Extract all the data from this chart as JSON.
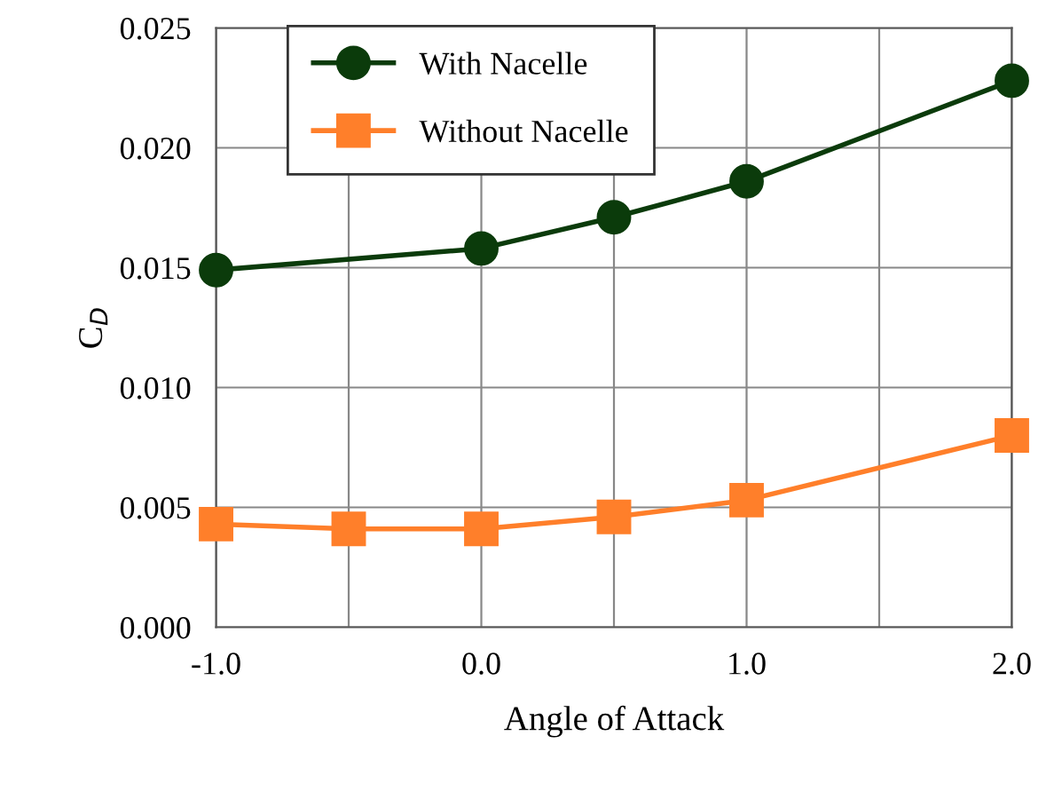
{
  "chart_data": {
    "type": "line",
    "xlabel": "Angle of Attack",
    "ylabel": "C$_{D}$",
    "xlim": [
      -1.0,
      2.0
    ],
    "xticks": [
      {
        "value": -1.0,
        "label": "-1.0"
      },
      {
        "value": -0.5,
        "label": null
      },
      {
        "value": 0.0,
        "label": "0.0"
      },
      {
        "value": 0.5,
        "label": null
      },
      {
        "value": 1.0,
        "label": "1.0"
      },
      {
        "value": 1.5,
        "label": null
      },
      {
        "value": 2.0,
        "label": "2.0"
      }
    ],
    "ylim": [
      0.0,
      0.025
    ],
    "yticks": [
      {
        "value": 0.0,
        "label": "0.000"
      },
      {
        "value": 0.005,
        "label": "0.005"
      },
      {
        "value": 0.01,
        "label": "0.010"
      },
      {
        "value": 0.015,
        "label": "0.015"
      },
      {
        "value": 0.02,
        "label": "0.020"
      },
      {
        "value": 0.025,
        "label": "0.025"
      }
    ],
    "grid": true,
    "legend": "top left",
    "line_style": "solid",
    "series": [
      {
        "name": "With Nacelle",
        "color": "#0b3b0b",
        "marker": "circle",
        "x": [
          -1.0,
          0.0,
          0.5,
          1.0,
          2.0
        ],
        "values": [
          0.0149,
          0.0158,
          0.0171,
          0.0186,
          0.0228
        ]
      },
      {
        "name": "Without Nacelle",
        "color": "#ff7f2a",
        "marker": "square",
        "x": [
          -1.0,
          -0.5,
          0.0,
          0.5,
          1.0,
          2.0
        ],
        "values": [
          0.0043,
          0.0041,
          0.0041,
          0.0046,
          0.0053,
          0.008
        ]
      }
    ]
  }
}
